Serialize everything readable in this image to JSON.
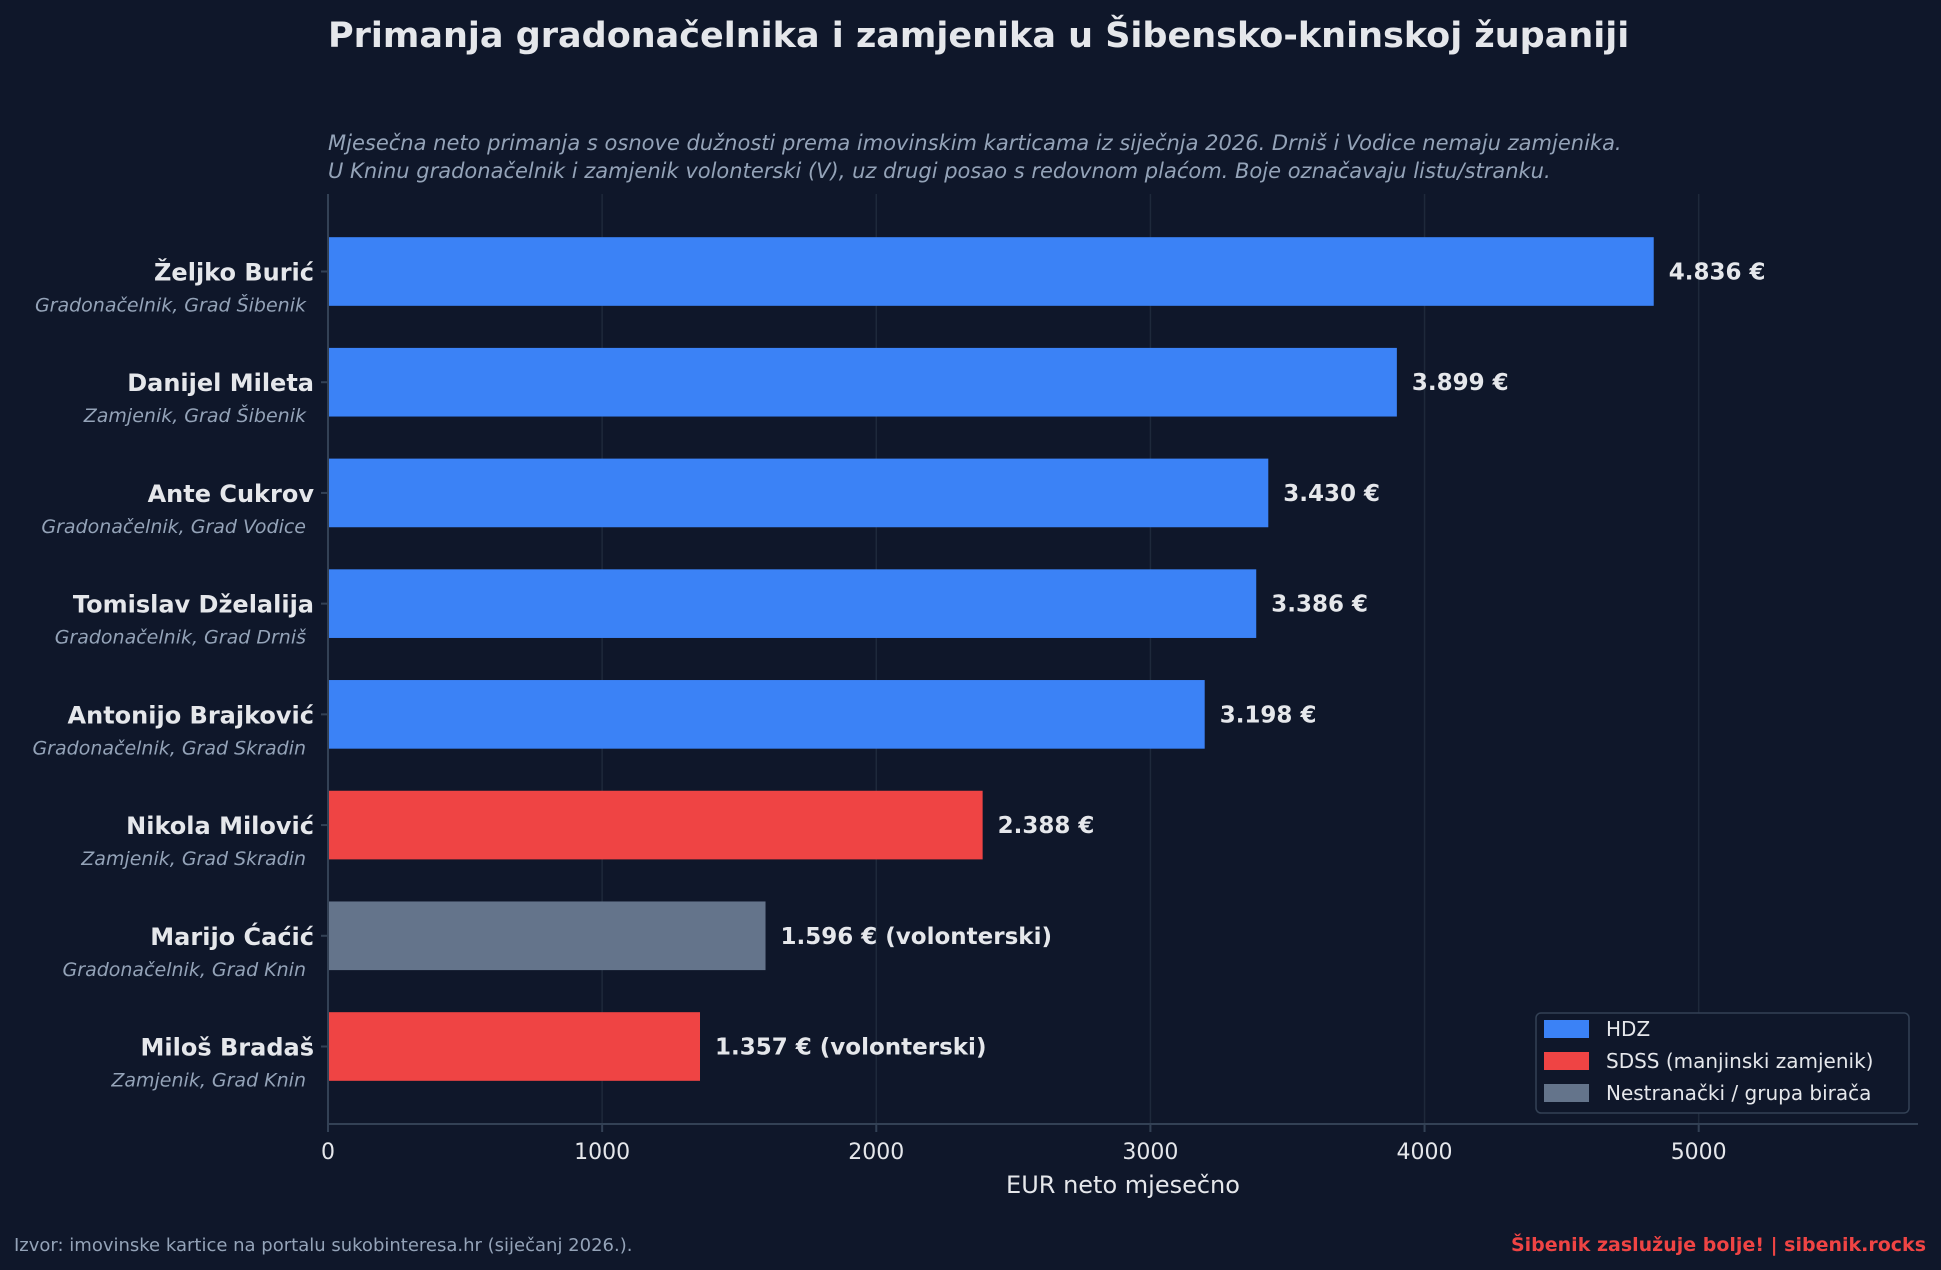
{
  "chart_data": {
    "type": "bar",
    "orientation": "horizontal",
    "title": "Primanja gradonačelnika i zamjenika u Šibensko-kninskoj županiji",
    "subtitle_lines": [
      "Mjesečna neto primanja s osnove dužnosti prema imovinskim karticama iz siječnja 2026. Drniš i Vodice nemaju zamjenika.",
      "U Kninu gradonačelnik i zamjenik volonterski (V), uz drugi posao s redovnom plaćom. Boje označavaju listu/stranku."
    ],
    "xlabel": "EUR neto mjesečno",
    "xlim": [
      0,
      5800
    ],
    "xticks": [
      0,
      1000,
      2000,
      3000,
      4000,
      5000
    ],
    "xtick_labels": [
      "0",
      "1000",
      "2000",
      "3000",
      "4000",
      "5000"
    ],
    "grid": "vertical",
    "legend_position": "lower-right",
    "legend": [
      {
        "label": "HDZ",
        "color": "#3b82f6"
      },
      {
        "label": "SDSS (manjinski zamjenik)",
        "color": "#ef4444"
      },
      {
        "label": "Nestranački / grupa birača",
        "color": "#64748b"
      }
    ],
    "bars": [
      {
        "name": "Željko Burić",
        "role": "Gradonačelnik, Grad Šibenik",
        "value": 4836,
        "label": "4.836 €",
        "color": "#3b82f6"
      },
      {
        "name": "Danijel Mileta",
        "role": "Zamjenik, Grad Šibenik",
        "value": 3899,
        "label": "3.899 €",
        "color": "#3b82f6"
      },
      {
        "name": "Ante Cukrov",
        "role": "Gradonačelnik, Grad Vodice",
        "value": 3430,
        "label": "3.430 €",
        "color": "#3b82f6"
      },
      {
        "name": "Tomislav Dželalija",
        "role": "Gradonačelnik, Grad Drniš",
        "value": 3386,
        "label": "3.386 €",
        "color": "#3b82f6"
      },
      {
        "name": "Antonijo Brajković",
        "role": "Gradonačelnik, Grad Skradin",
        "value": 3198,
        "label": "3.198 €",
        "color": "#3b82f6"
      },
      {
        "name": "Nikola Milović",
        "role": "Zamjenik, Grad Skradin",
        "value": 2388,
        "label": "2.388 €",
        "color": "#ef4444"
      },
      {
        "name": "Marijo Ćaćić",
        "role": "Gradonačelnik, Grad Knin",
        "value": 1596,
        "label": "1.596 €  (volonterski)",
        "color": "#64748b"
      },
      {
        "name": "Miloš Bradaš",
        "role": "Zamjenik, Grad Knin",
        "value": 1357,
        "label": "1.357 €  (volonterski)",
        "color": "#ef4444"
      }
    ]
  },
  "footer": {
    "source": "Izvor: imovinske kartice na portalu sukobinteresa.hr (siječanj 2026.).",
    "brand": "Šibenik zaslužuje bolje!  |  sibenik.rocks",
    "brand_color": "#ef4444"
  },
  "colors": {
    "background": "#0f172a",
    "text": "#e5e7eb",
    "muted_text": "#94a3b8",
    "grid": "#1e293b",
    "axis": "#334155"
  }
}
